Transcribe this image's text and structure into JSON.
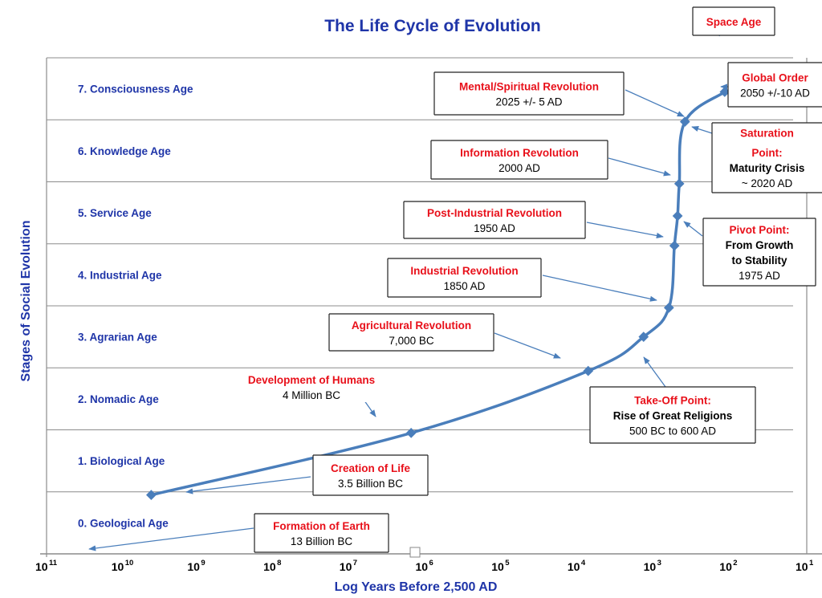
{
  "chart_data": {
    "type": "line",
    "title": "The Life Cycle of Evolution",
    "xlabel": "Log Years Before 2,500 AD",
    "ylabel": "Stages of Social Evolution",
    "x_scale": "log-reversed",
    "xlim": [
      100000000000.0,
      10
    ],
    "ylim": [
      0,
      8
    ],
    "x_ticks": [
      {
        "base": "10",
        "exp": "11",
        "value": 100000000000.0
      },
      {
        "base": "10",
        "exp": "10",
        "value": 10000000000.0
      },
      {
        "base": "10",
        "exp": "9",
        "value": 1000000000.0
      },
      {
        "base": "10",
        "exp": "8",
        "value": 100000000.0
      },
      {
        "base": "10",
        "exp": "7",
        "value": 10000000.0
      },
      {
        "base": "10",
        "exp": "6",
        "value": 1000000.0
      },
      {
        "base": "10",
        "exp": "5",
        "value": 100000.0
      },
      {
        "base": "10",
        "exp": "4",
        "value": 10000.0
      },
      {
        "base": "10",
        "exp": "3",
        "value": 1000.0
      },
      {
        "base": "10",
        "exp": "2",
        "value": 100.0
      },
      {
        "base": "10",
        "exp": "1",
        "value": 10
      }
    ],
    "stages": [
      "0. Geological Age",
      "1. Biological Age",
      "2. Nomadic Age",
      "3. Agrarian Age",
      "4. Industrial Age",
      "5. Service Age",
      "6. Knowledge Age",
      "7. Consciousness Age"
    ],
    "points": [
      {
        "x": 4200000000.0,
        "y": 0.95
      },
      {
        "x": 1600000.0,
        "y": 1.95
      },
      {
        "x": 7500,
        "y": 2.95
      },
      {
        "x": 1400,
        "y": 3.5
      },
      {
        "x": 650,
        "y": 3.97
      },
      {
        "x": 550,
        "y": 4.97
      },
      {
        "x": 500,
        "y": 5.45
      },
      {
        "x": 475,
        "y": 5.97
      },
      {
        "x": 400,
        "y": 6.97
      },
      {
        "x": 120,
        "y": 7.45
      }
    ],
    "annotations": [
      {
        "title": "Space Age",
        "lines": []
      },
      {
        "title": "Global Order",
        "lines": [
          "2050 +/-10 AD"
        ]
      },
      {
        "title": "Mental/Spiritual Revolution",
        "lines": [
          "2025 +/- 5 AD"
        ]
      },
      {
        "title": "Saturation",
        "lines": []
      },
      {
        "title": "Point:",
        "lines": [
          "Maturity Crisis",
          "~ 2020 AD"
        ]
      },
      {
        "title": "Information Revolution",
        "lines": [
          "2000 AD"
        ]
      },
      {
        "title": "Post-Industrial Revolution",
        "lines": [
          "1950 AD"
        ]
      },
      {
        "title": "Pivot Point:",
        "lines": [
          "From Growth",
          "to Stability",
          "1975 AD"
        ]
      },
      {
        "title": "Industrial Revolution",
        "lines": [
          "1850 AD"
        ]
      },
      {
        "title": "Agricultural Revolution",
        "lines": [
          "7,000 BC"
        ]
      },
      {
        "title": "Take-Off Point:",
        "lines": [
          "Rise of Great Religions",
          "500 BC to 600 AD"
        ]
      },
      {
        "title": "Development of Humans",
        "lines": [
          "4 Million BC"
        ]
      },
      {
        "title": "Creation of Life",
        "lines": [
          "3.5 Billion BC"
        ]
      },
      {
        "title": "Formation of Earth",
        "lines": [
          "13 Billion BC"
        ]
      }
    ],
    "colors": {
      "curve": "#4a7ebb",
      "labels": "#1f35a8",
      "event_titles": "#e8101a",
      "grid": "#8c8c8c"
    }
  }
}
